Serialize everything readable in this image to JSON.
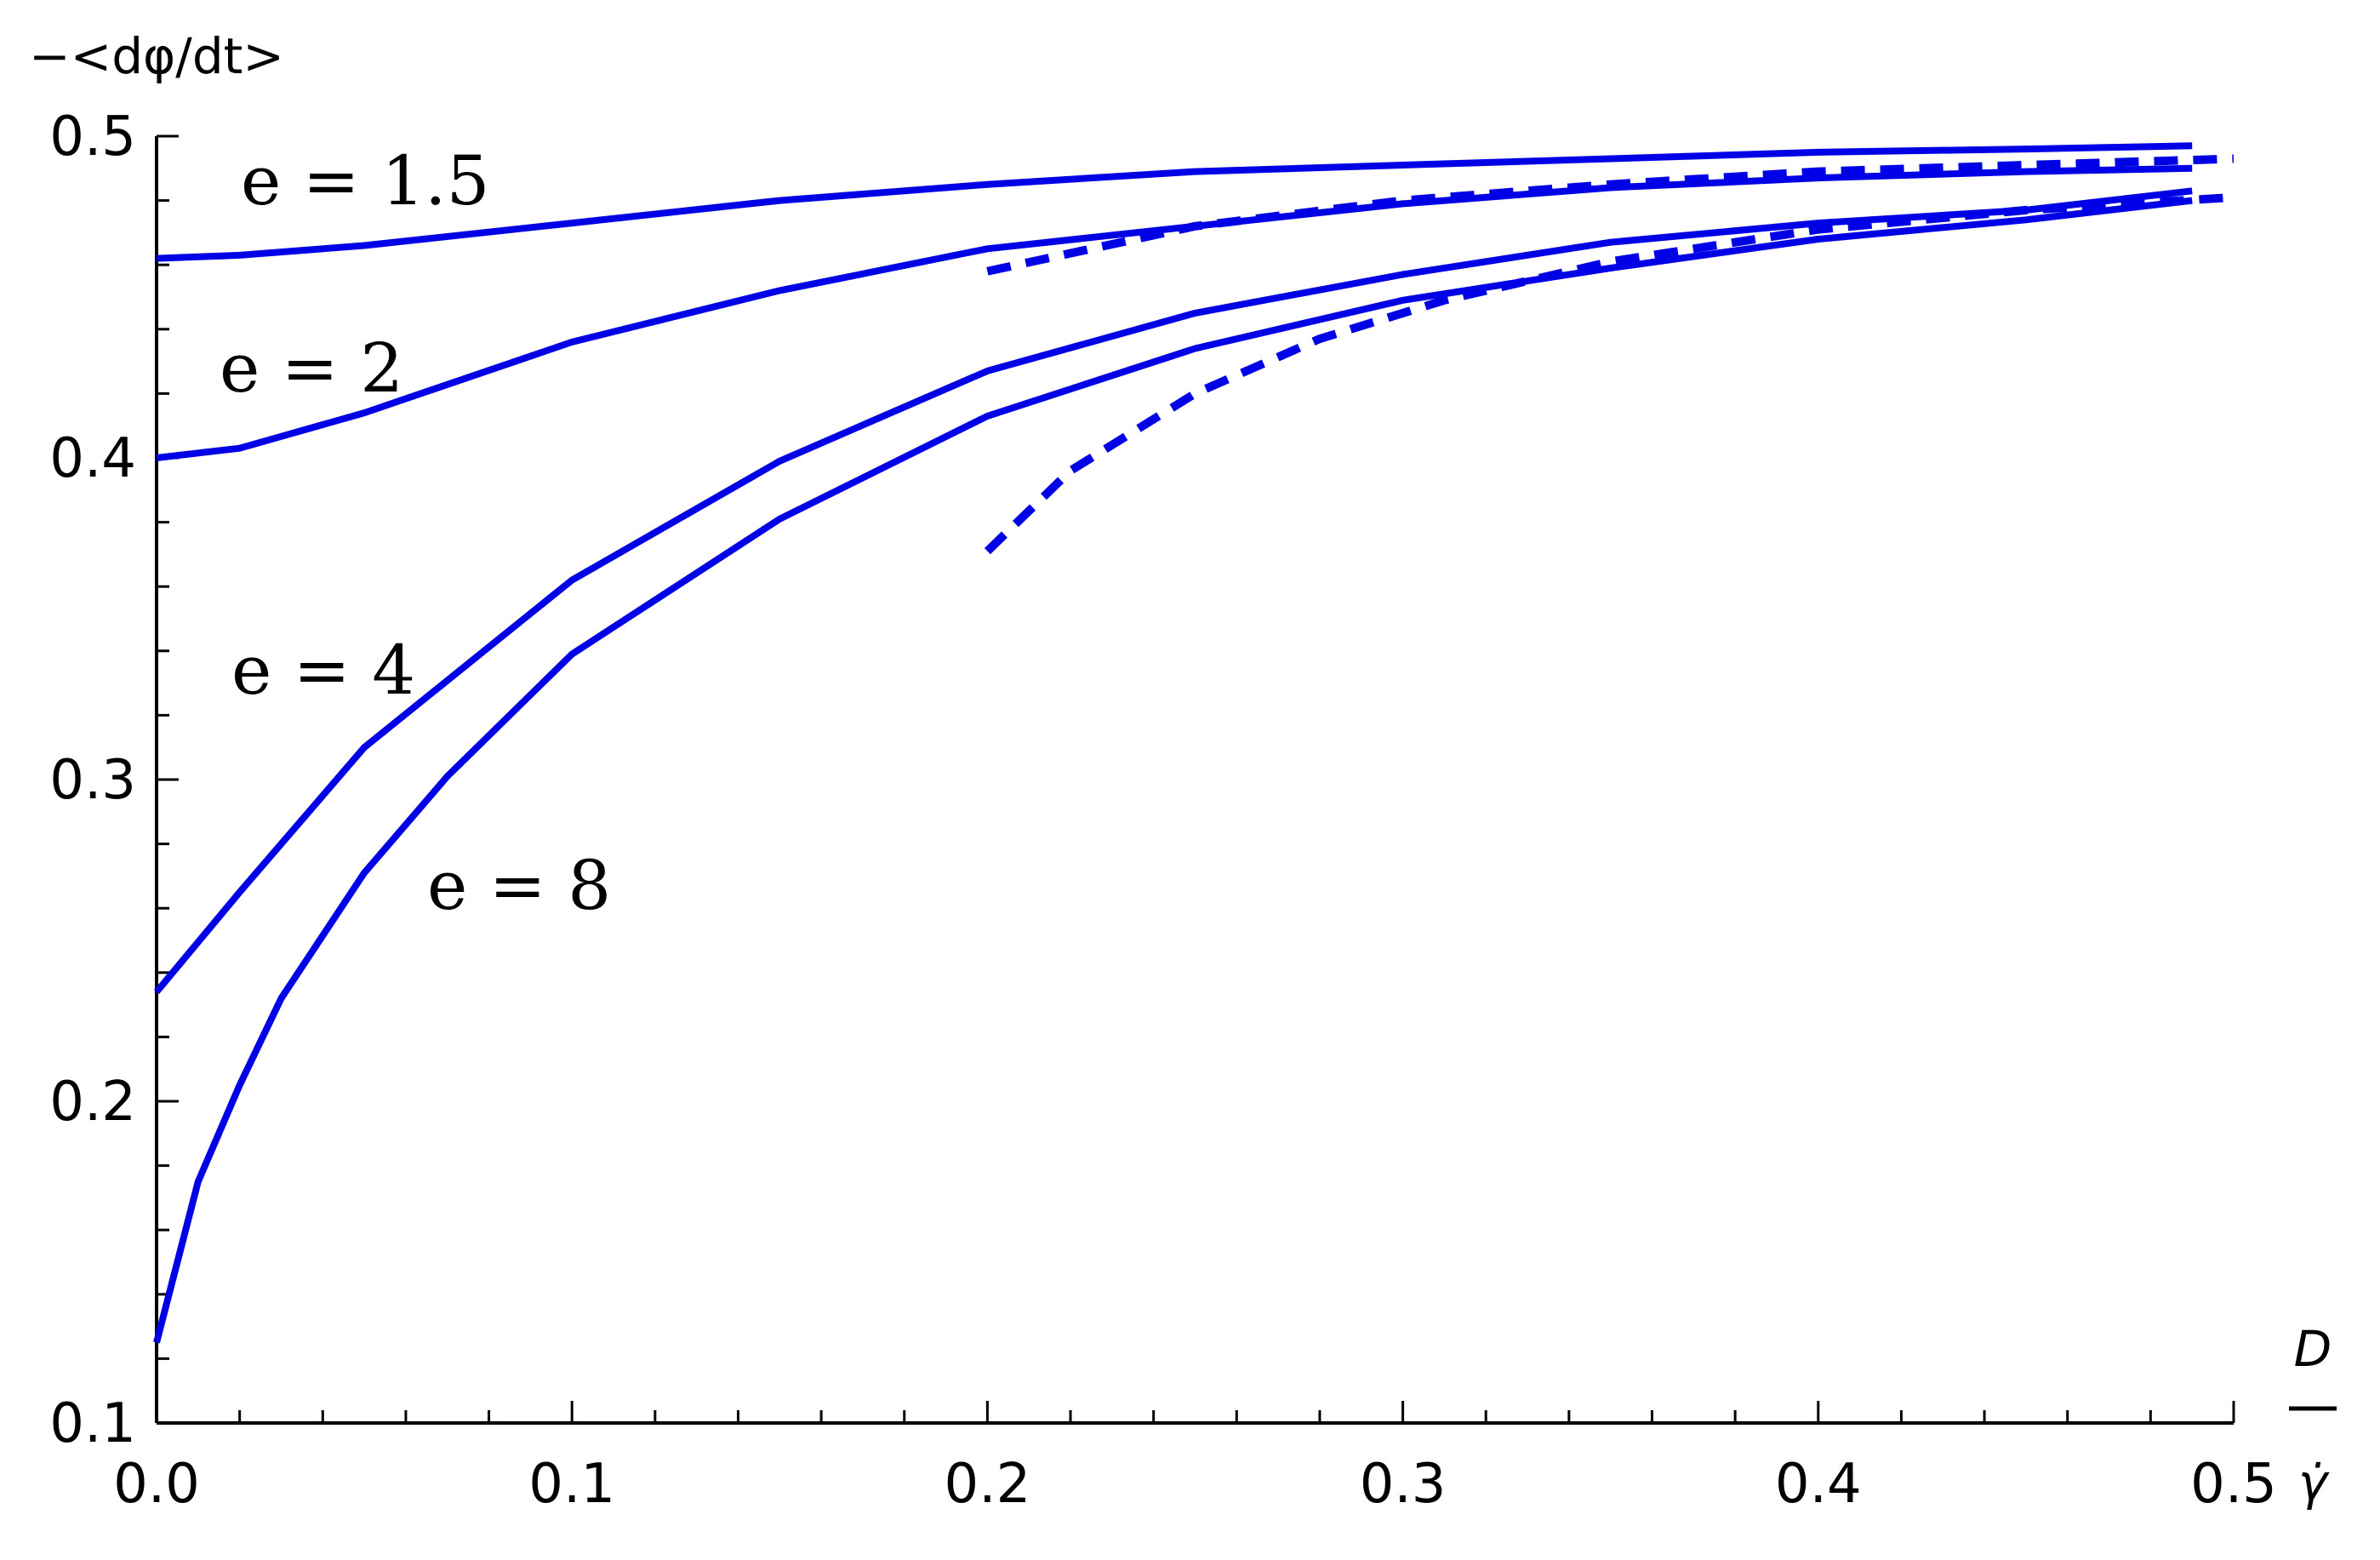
{
  "chart_data": {
    "type": "line",
    "ylabel": "−<dφ/dt>",
    "xlabel": {
      "numerator": "D",
      "denominator": "γ̇"
    },
    "xlim": [
      0,
      0.5
    ],
    "ylim": [
      0.1,
      0.5
    ],
    "x_ticks": [
      "0.0",
      "0.1",
      "0.2",
      "0.3",
      "0.4",
      "0.5"
    ],
    "y_ticks": [
      "0.1",
      "0.2",
      "0.3",
      "0.4",
      "0.5"
    ],
    "grid": false,
    "line_color": "#0000e6",
    "annotations": [
      "e = 1.5",
      "e = 2",
      "e = 4",
      "e = 8"
    ],
    "series": [
      {
        "style": "solid",
        "x": [
          0,
          0.02,
          0.05,
          0.1,
          0.15,
          0.2,
          0.25,
          0.3,
          0.35,
          0.4,
          0.45,
          0.49
        ],
        "y": [
          0.462,
          0.463,
          0.466,
          0.473,
          0.48,
          0.485,
          0.489,
          0.491,
          0.493,
          0.495,
          0.496,
          0.497
        ]
      },
      {
        "style": "solid",
        "x": [
          0,
          0.02,
          0.05,
          0.1,
          0.15,
          0.2,
          0.25,
          0.3,
          0.35,
          0.4,
          0.45,
          0.49
        ],
        "y": [
          0.4,
          0.403,
          0.414,
          0.436,
          0.452,
          0.465,
          0.472,
          0.479,
          0.484,
          0.487,
          0.489,
          0.49
        ]
      },
      {
        "style": "solid",
        "x": [
          0,
          0.02,
          0.05,
          0.1,
          0.15,
          0.2,
          0.25,
          0.3,
          0.35,
          0.4,
          0.45,
          0.49
        ],
        "y": [
          0.234,
          0.265,
          0.31,
          0.362,
          0.399,
          0.427,
          0.445,
          0.457,
          0.467,
          0.473,
          0.477,
          0.483
        ]
      },
      {
        "style": "solid",
        "x": [
          0,
          0.01,
          0.02,
          0.03,
          0.05,
          0.07,
          0.1,
          0.15,
          0.2,
          0.25,
          0.3,
          0.35,
          0.4,
          0.45,
          0.49
        ],
        "y": [
          0.125,
          0.175,
          0.205,
          0.232,
          0.271,
          0.301,
          0.339,
          0.381,
          0.413,
          0.434,
          0.449,
          0.459,
          0.468,
          0.474,
          0.48
        ]
      },
      {
        "style": "dashed",
        "x": [
          0.2,
          0.25,
          0.3,
          0.35,
          0.4,
          0.45,
          0.5
        ],
        "y": [
          0.458,
          0.472,
          0.48,
          0.485,
          0.489,
          0.491,
          0.493
        ]
      },
      {
        "style": "dashed",
        "x": [
          0.2,
          0.22,
          0.25,
          0.28,
          0.31,
          0.35,
          0.4,
          0.45,
          0.5
        ],
        "y": [
          0.371,
          0.396,
          0.42,
          0.437,
          0.449,
          0.461,
          0.471,
          0.477,
          0.481
        ]
      }
    ]
  }
}
